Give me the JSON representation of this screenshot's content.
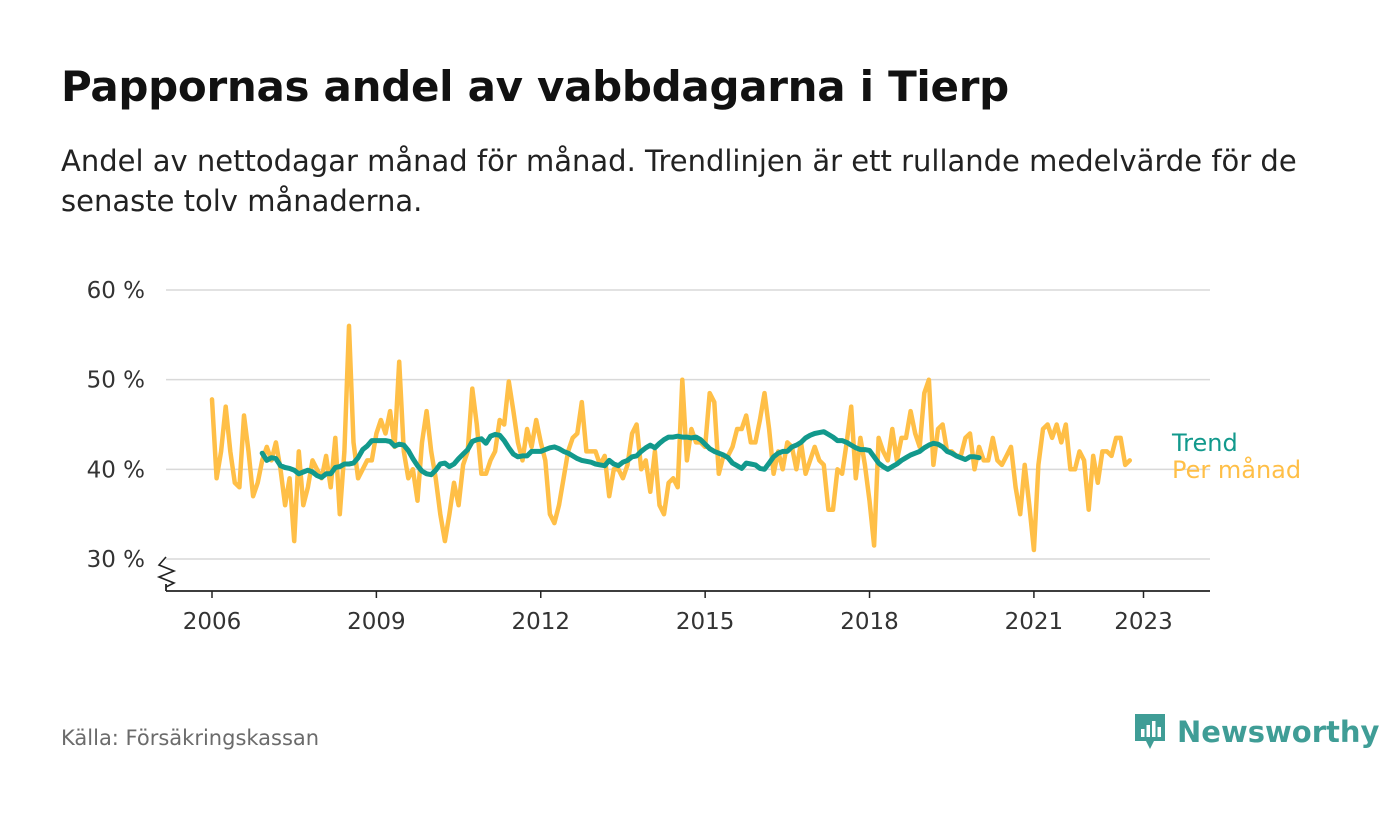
{
  "header": {
    "title": "Pappornas andel av vabbdagarna i Tierp",
    "subtitle": "Andel av nettodagar månad för månad. Trendlinjen är ett rullande medelvärde för de senaste tolv månaderna."
  },
  "footer": {
    "source": "Källa: Försäkringskassan",
    "brand": "Newsworthy"
  },
  "colors": {
    "monthly": "#FFBF47",
    "trend": "#12998C",
    "grid": "#d9d9d9",
    "axis": "#222222",
    "brand": "#3f9d96"
  },
  "chart_data": {
    "type": "line",
    "title": "Pappornas andel av vabbdagarna i Tierp",
    "xlabel": "",
    "ylabel": "",
    "xlim": [
      2005.2,
      2024.25
    ],
    "ylim": [
      26.5,
      60
    ],
    "yticks": [
      30,
      40,
      50,
      60
    ],
    "ytick_labels": [
      "30 %",
      "40 %",
      "50 %",
      "60 %"
    ],
    "xticks": [
      2006,
      2009,
      2012,
      2015,
      2018,
      2021,
      2023
    ],
    "xtick_labels": [
      "2006",
      "2009",
      "2012",
      "2015",
      "2018",
      "2021",
      "2023"
    ],
    "grid": true,
    "axis_break": true,
    "legend": [
      {
        "name": "Trend",
        "color": "#12998C"
      },
      {
        "name": "Per månad",
        "color": "#FFBF47"
      }
    ],
    "series": [
      {
        "name": "Per månad",
        "start": 2006.0,
        "step": 0.08333,
        "values": [
          47.8,
          39,
          42,
          47,
          42,
          38.5,
          38,
          46,
          42,
          37,
          38.5,
          41,
          42.5,
          41,
          43,
          40,
          36,
          39,
          32,
          42,
          36,
          38,
          41,
          40,
          39,
          41.5,
          38,
          43.5,
          35,
          42,
          56,
          43,
          39,
          40,
          41,
          41,
          44,
          45.5,
          44,
          46.5,
          42.5,
          52,
          42,
          39,
          40,
          36.5,
          43,
          46.5,
          42,
          39,
          35,
          32,
          35,
          38.5,
          36,
          40.5,
          42,
          49,
          45,
          39.5,
          39.5,
          41,
          42,
          45.5,
          45,
          49.8,
          46.5,
          43,
          41,
          44.5,
          42.5,
          45.5,
          43,
          41,
          35,
          34,
          36,
          39,
          42,
          43.5,
          44,
          47.5,
          42,
          42,
          42,
          40.5,
          41.5,
          37,
          40,
          40,
          39,
          40.5,
          44,
          45,
          40,
          41,
          37.5,
          42,
          36,
          35,
          38.5,
          39,
          38,
          50,
          41,
          44.5,
          43,
          43,
          42.5,
          48.5,
          47.5,
          39.5,
          41.5,
          41.5,
          42.5,
          44.5,
          44.5,
          46,
          43,
          43,
          45.5,
          48.5,
          44.5,
          39.5,
          42,
          40,
          43,
          42.5,
          40,
          43,
          39.5,
          41,
          42.5,
          41,
          40.5,
          35.5,
          35.5,
          40,
          39.5,
          43,
          47,
          39,
          43.5,
          40.5,
          36.5,
          31.5,
          43.5,
          42,
          41,
          44.5,
          41,
          43.5,
          43.5,
          46.5,
          44,
          42.5,
          48.5,
          50,
          40.5,
          44.5,
          45,
          42,
          42,
          41.5,
          41.5,
          43.5,
          44,
          40,
          42.5,
          41,
          41,
          43.5,
          41,
          40.5,
          41.5,
          42.5,
          38,
          35,
          40.5,
          36,
          31,
          40.5,
          44.5,
          45,
          43.5,
          45,
          43,
          45,
          40,
          40,
          42,
          41,
          35.5,
          41.5,
          38.5,
          42,
          42,
          41.5,
          43.5,
          43.5,
          40.5,
          41
        ]
      },
      {
        "name": "Trend",
        "start": 2006.9167,
        "step": 0.08333,
        "values": [
          41.8,
          41,
          41.3,
          41.2,
          40.4,
          40.2,
          40.1,
          39.9,
          39.5,
          39.7,
          39.9,
          39.7,
          39.3,
          39.1,
          39.5,
          39.5,
          40.2,
          40.3,
          40.6,
          40.6,
          40.7,
          41.3,
          42.2,
          42.6,
          43.2,
          43.2,
          43.2,
          43.2,
          43.1,
          42.6,
          42.8,
          42.7,
          42.1,
          41.2,
          40.4,
          39.8,
          39.5,
          39.4,
          39.9,
          40.6,
          40.7,
          40.3,
          40.6,
          41.2,
          41.7,
          42.2,
          43.1,
          43.3,
          43.4,
          42.9,
          43.7,
          43.9,
          43.8,
          43.2,
          42.4,
          41.7,
          41.4,
          41.5,
          41.5,
          42,
          42,
          42,
          42.2,
          42.4,
          42.5,
          42.3,
          42,
          41.8,
          41.5,
          41.2,
          41,
          40.9,
          40.8,
          40.6,
          40.5,
          40.4,
          41,
          40.6,
          40.4,
          40.8,
          41,
          41.4,
          41.5,
          42,
          42.4,
          42.7,
          42.4,
          42.9,
          43.3,
          43.6,
          43.6,
          43.7,
          43.6,
          43.6,
          43.5,
          43.6,
          43.3,
          42.8,
          42.3,
          42,
          41.8,
          41.6,
          41.3,
          40.7,
          40.4,
          40.1,
          40.7,
          40.6,
          40.5,
          40.1,
          40,
          40.7,
          41.4,
          41.8,
          42,
          42,
          42.5,
          42.7,
          43,
          43.5,
          43.8,
          44,
          44.1,
          44.2,
          43.9,
          43.6,
          43.2,
          43.2,
          43,
          42.7,
          42.4,
          42.2,
          42.2,
          42.1,
          41.4,
          40.7,
          40.3,
          40,
          40.3,
          40.6,
          41,
          41.3,
          41.6,
          41.8,
          42,
          42.4,
          42.7,
          42.9,
          42.8,
          42.5,
          42,
          41.8,
          41.5,
          41.3,
          41.1,
          41.4,
          41.4,
          41.3
        ]
      }
    ]
  }
}
